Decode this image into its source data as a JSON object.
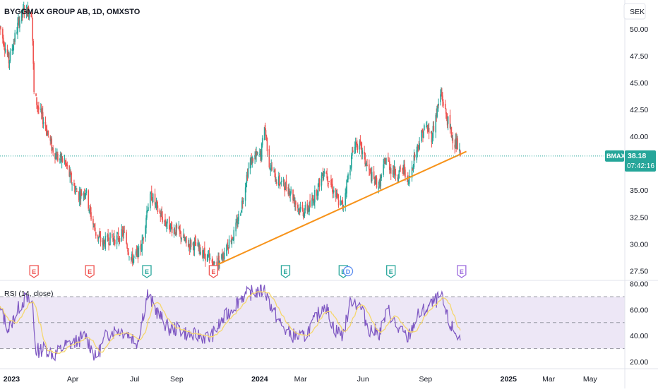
{
  "header": {
    "title": "BYGGMAX GROUP AB, 1D, OMXSTO",
    "currency": "SEK"
  },
  "price_tag": {
    "symbol": "BMAX",
    "price": "38.18",
    "countdown": "07:42:16"
  },
  "rsi_panel": {
    "title": "RSI (14, close)"
  },
  "colors": {
    "up": "#26a69a",
    "down": "#ef5350",
    "trendline": "#f7931a",
    "rsi_line": "#7e57c2",
    "rsi_ma": "#f5d76e",
    "rsi_band": "#ede7f6",
    "earnings_red": "#ef5350",
    "earnings_green": "#26a69a",
    "earnings_purple": "#9c6ade",
    "dividend": "#5b8def",
    "last_price_line": "#26a69a"
  },
  "chart_data": [
    {
      "type": "candlestick",
      "y_axis": {
        "ticks": [
          "50.00",
          "47.50",
          "45.00",
          "42.50",
          "40.00",
          "37.50",
          "35.00",
          "32.50",
          "30.00",
          "27.50"
        ],
        "ylim": [
          26.6,
          52.7
        ]
      },
      "x_axis": {
        "ticks": [
          "2023",
          "Apr",
          "Jul",
          "Sep",
          "2024",
          "Mar",
          "Jun",
          "Sep",
          "2025",
          "Mar",
          "May"
        ]
      },
      "trendline": {
        "from": {
          "date": "2023-11-01",
          "price": 28.1
        },
        "to": {
          "date": "2024-10-31",
          "price": 38.6
        }
      },
      "last_price": 38.18,
      "price_path": [
        [
          "2022-12-15",
          50.2
        ],
        [
          "2022-12-28",
          47.0
        ],
        [
          "2023-01-12",
          50.8
        ],
        [
          "2023-01-20",
          51.8
        ],
        [
          "2023-01-31",
          51.5
        ],
        [
          "2023-02-03",
          44.0
        ],
        [
          "2023-02-10",
          42.5
        ],
        [
          "2023-02-20",
          41.0
        ],
        [
          "2023-03-01",
          39.0
        ],
        [
          "2023-03-10",
          38.0
        ],
        [
          "2023-03-20",
          37.7
        ],
        [
          "2023-04-01",
          35.5
        ],
        [
          "2023-04-10",
          34.5
        ],
        [
          "2023-04-20",
          35.0
        ],
        [
          "2023-04-26",
          33.0
        ],
        [
          "2023-05-05",
          31.0
        ],
        [
          "2023-05-15",
          30.0
        ],
        [
          "2023-05-25",
          30.5
        ],
        [
          "2023-06-05",
          30.5
        ],
        [
          "2023-06-15",
          31.0
        ],
        [
          "2023-06-26",
          28.5
        ],
        [
          "2023-07-05",
          29.0
        ],
        [
          "2023-07-12",
          30.0
        ],
        [
          "2023-07-20",
          33.5
        ],
        [
          "2023-07-26",
          34.5
        ],
        [
          "2023-08-05",
          33.0
        ],
        [
          "2023-08-15",
          32.0
        ],
        [
          "2023-08-25",
          31.5
        ],
        [
          "2023-09-05",
          31.0
        ],
        [
          "2023-09-15",
          30.0
        ],
        [
          "2023-09-25",
          30.0
        ],
        [
          "2023-10-05",
          29.5
        ],
        [
          "2023-10-15",
          28.8
        ],
        [
          "2023-10-25",
          28.0
        ],
        [
          "2023-11-05",
          28.6
        ],
        [
          "2023-11-15",
          30.0
        ],
        [
          "2023-11-25",
          31.0
        ],
        [
          "2023-12-05",
          33.5
        ],
        [
          "2023-12-15",
          37.0
        ],
        [
          "2023-12-22",
          38.0
        ],
        [
          "2024-01-03",
          38.3
        ],
        [
          "2024-01-08",
          41.2
        ],
        [
          "2024-01-15",
          37.5
        ],
        [
          "2024-01-25",
          36.0
        ],
        [
          "2024-02-05",
          35.5
        ],
        [
          "2024-02-15",
          35.0
        ],
        [
          "2024-02-25",
          33.5
        ],
        [
          "2024-03-05",
          33.0
        ],
        [
          "2024-03-15",
          33.5
        ],
        [
          "2024-03-25",
          35.0
        ],
        [
          "2024-04-05",
          37.0
        ],
        [
          "2024-04-15",
          35.5
        ],
        [
          "2024-04-25",
          34.0
        ],
        [
          "2024-05-02",
          33.5
        ],
        [
          "2024-05-12",
          37.0
        ],
        [
          "2024-05-20",
          39.5
        ],
        [
          "2024-05-28",
          39.0
        ],
        [
          "2024-06-05",
          37.5
        ],
        [
          "2024-06-15",
          36.0
        ],
        [
          "2024-06-25",
          35.5
        ],
        [
          "2024-07-05",
          38.0
        ],
        [
          "2024-07-12",
          37.0
        ],
        [
          "2024-07-22",
          36.5
        ],
        [
          "2024-08-01",
          37.0
        ],
        [
          "2024-08-06",
          35.5
        ],
        [
          "2024-08-15",
          38.0
        ],
        [
          "2024-08-25",
          40.0
        ],
        [
          "2024-09-01",
          41.0
        ],
        [
          "2024-09-10",
          40.0
        ],
        [
          "2024-09-18",
          42.5
        ],
        [
          "2024-09-24",
          44.0
        ],
        [
          "2024-10-01",
          42.0
        ],
        [
          "2024-10-10",
          40.0
        ],
        [
          "2024-10-18",
          39.0
        ],
        [
          "2024-10-22",
          38.18
        ]
      ],
      "events": [
        {
          "date": "2023-02-03",
          "label": "E",
          "kind": "earnings_red"
        },
        {
          "date": "2023-04-26",
          "label": "E",
          "kind": "earnings_red"
        },
        {
          "date": "2023-07-19",
          "label": "E",
          "kind": "earnings_green"
        },
        {
          "date": "2023-10-25",
          "label": "E",
          "kind": "earnings_red"
        },
        {
          "date": "2024-02-08",
          "label": "E",
          "kind": "earnings_green"
        },
        {
          "date": "2024-05-03",
          "label": "E",
          "kind": "earnings_green"
        },
        {
          "date": "2024-05-10",
          "label": "D",
          "kind": "dividend"
        },
        {
          "date": "2024-07-12",
          "label": "E",
          "kind": "earnings_green"
        },
        {
          "date": "2024-10-24",
          "label": "E",
          "kind": "earnings_purple"
        }
      ]
    },
    {
      "type": "line",
      "title": "RSI (14, close)",
      "y_axis": {
        "ticks": [
          "80.00",
          "60.00",
          "40.00",
          "20.00"
        ],
        "ylim": [
          15,
          82
        ]
      },
      "bands": {
        "upper": 70,
        "middle": 50,
        "lower": 30
      },
      "rsi_path": [
        [
          "2022-12-15",
          60
        ],
        [
          "2022-12-28",
          45
        ],
        [
          "2023-01-12",
          62
        ],
        [
          "2023-01-20",
          68
        ],
        [
          "2023-02-01",
          65
        ],
        [
          "2023-02-05",
          28
        ],
        [
          "2023-02-20",
          30
        ],
        [
          "2023-03-05",
          25
        ],
        [
          "2023-03-20",
          32
        ],
        [
          "2023-04-05",
          35
        ],
        [
          "2023-04-20",
          40
        ],
        [
          "2023-05-05",
          22
        ],
        [
          "2023-05-20",
          40
        ],
        [
          "2023-06-05",
          45
        ],
        [
          "2023-06-20",
          42
        ],
        [
          "2023-07-05",
          35
        ],
        [
          "2023-07-20",
          72
        ],
        [
          "2023-08-01",
          60
        ],
        [
          "2023-08-20",
          45
        ],
        [
          "2023-09-05",
          45
        ],
        [
          "2023-09-20",
          40
        ],
        [
          "2023-10-05",
          40
        ],
        [
          "2023-10-20",
          38
        ],
        [
          "2023-11-05",
          50
        ],
        [
          "2023-11-20",
          60
        ],
        [
          "2023-12-05",
          70
        ],
        [
          "2023-12-20",
          73
        ],
        [
          "2024-01-08",
          75
        ],
        [
          "2024-01-20",
          60
        ],
        [
          "2024-02-05",
          45
        ],
        [
          "2024-02-20",
          40
        ],
        [
          "2024-03-05",
          38
        ],
        [
          "2024-03-20",
          50
        ],
        [
          "2024-04-05",
          65
        ],
        [
          "2024-04-20",
          45
        ],
        [
          "2024-05-02",
          40
        ],
        [
          "2024-05-15",
          68
        ],
        [
          "2024-05-28",
          62
        ],
        [
          "2024-06-10",
          45
        ],
        [
          "2024-06-25",
          42
        ],
        [
          "2024-07-08",
          60
        ],
        [
          "2024-07-22",
          45
        ],
        [
          "2024-08-06",
          38
        ],
        [
          "2024-08-20",
          55
        ],
        [
          "2024-09-05",
          62
        ],
        [
          "2024-09-24",
          70
        ],
        [
          "2024-10-05",
          50
        ],
        [
          "2024-10-15",
          42
        ],
        [
          "2024-10-22",
          37
        ]
      ]
    }
  ]
}
